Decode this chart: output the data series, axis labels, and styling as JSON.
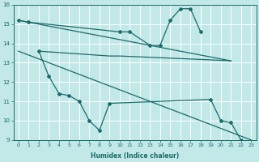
{
  "xlabel": "Humidex (Indice chaleur)",
  "bg_color": "#c2e8e8",
  "grid_color": "#ffffff",
  "line_color": "#1a6b6b",
  "xlim": [
    -0.5,
    23.5
  ],
  "ylim": [
    9,
    16
  ],
  "yticks": [
    9,
    10,
    11,
    12,
    13,
    14,
    15,
    16
  ],
  "xticks": [
    0,
    1,
    2,
    3,
    4,
    5,
    6,
    7,
    8,
    9,
    10,
    11,
    12,
    13,
    14,
    15,
    16,
    17,
    18,
    19,
    20,
    21,
    22,
    23
  ],
  "trend1_x": [
    0,
    21
  ],
  "trend1_y": [
    15.2,
    13.1
  ],
  "trend2_x": [
    0,
    23
  ],
  "trend2_y": [
    13.6,
    9.0
  ],
  "line_top_x": [
    0,
    1,
    10,
    11,
    13,
    14,
    15,
    16,
    17,
    18
  ],
  "line_top_y": [
    15.2,
    15.1,
    14.6,
    14.6,
    13.9,
    13.9,
    15.2,
    15.8,
    15.8,
    14.6
  ],
  "line_bot_x": [
    2,
    3,
    4,
    5,
    6,
    7,
    8,
    9,
    19,
    20,
    21,
    22
  ],
  "line_bot_y": [
    13.6,
    12.3,
    11.4,
    11.3,
    11.0,
    10.0,
    9.5,
    10.9,
    11.1,
    10.0,
    9.9,
    9.0
  ],
  "mid_line_x": [
    2,
    9,
    10,
    19,
    21
  ],
  "mid_line_y": [
    13.6,
    13.35,
    13.35,
    13.15,
    13.1
  ]
}
